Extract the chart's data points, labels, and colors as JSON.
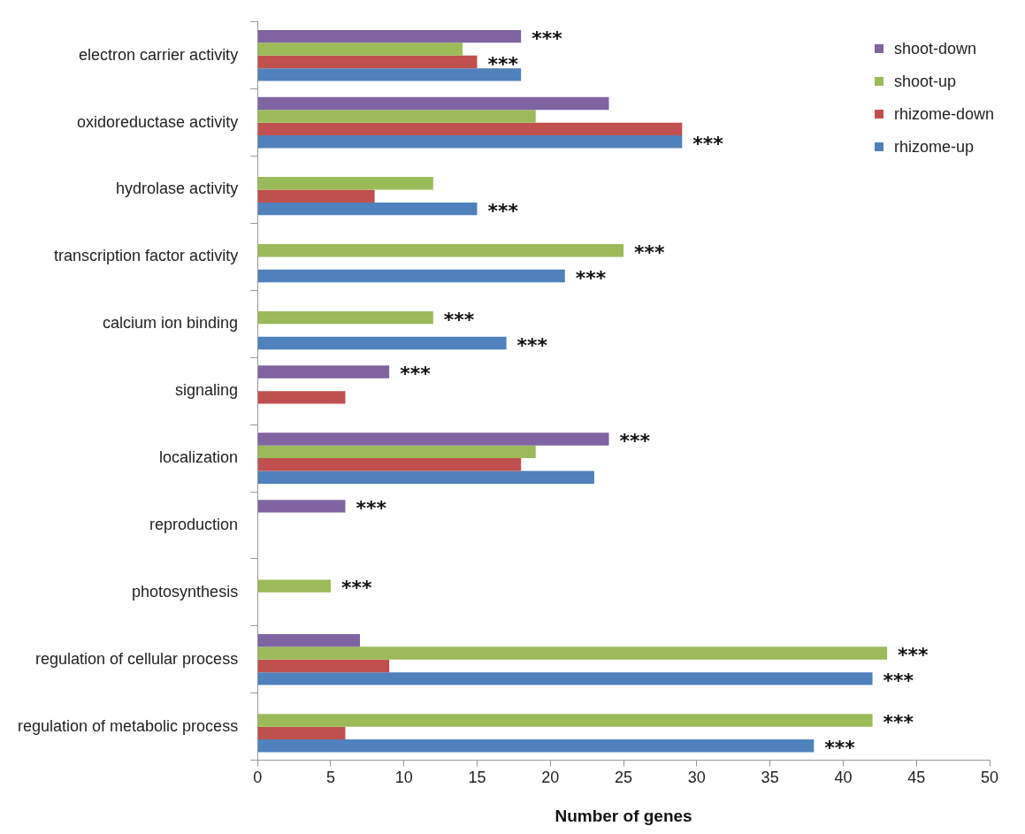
{
  "chart_data": {
    "type": "bar",
    "orientation": "horizontal",
    "xlabel": "Number of genes",
    "categories": [
      "electron carrier activity",
      "oxidoreductase activity",
      "hydrolase activity",
      "transcription factor activity",
      "calcium ion binding",
      "signaling",
      "localization",
      "reproduction",
      "photosynthesis",
      "regulation of cellular process",
      "regulation of metabolic process"
    ],
    "series": [
      {
        "name": "shoot-down",
        "color": "#8064a2",
        "values": [
          18,
          24,
          null,
          null,
          null,
          9,
          24,
          6,
          null,
          7,
          null
        ],
        "value_labels": [
          "***",
          null,
          null,
          null,
          null,
          "***",
          "***",
          "***",
          null,
          null,
          null
        ]
      },
      {
        "name": "shoot-up",
        "color": "#9bbb59",
        "values": [
          14,
          19,
          12,
          25,
          12,
          null,
          19,
          null,
          5,
          43,
          42
        ],
        "value_labels": [
          null,
          null,
          null,
          "***",
          "***",
          null,
          null,
          null,
          "***",
          "***",
          "***"
        ]
      },
      {
        "name": "rhizome-down",
        "color": "#c0504d",
        "values": [
          15,
          29,
          8,
          null,
          null,
          6,
          18,
          null,
          null,
          9,
          6
        ],
        "value_labels": [
          "***",
          null,
          null,
          null,
          null,
          null,
          null,
          null,
          null,
          null,
          null
        ]
      },
      {
        "name": "rhizome-up",
        "color": "#4f81bd",
        "values": [
          18,
          29,
          15,
          21,
          17,
          null,
          23,
          null,
          null,
          42,
          38
        ],
        "value_labels": [
          null,
          "***",
          "***",
          "***",
          "***",
          null,
          null,
          null,
          null,
          "***",
          "***"
        ]
      }
    ],
    "xlim": [
      0,
      50
    ],
    "xticks": [
      0,
      5,
      10,
      15,
      20,
      25,
      30,
      35,
      40,
      45,
      50
    ],
    "grid": false,
    "legend": "top right"
  }
}
